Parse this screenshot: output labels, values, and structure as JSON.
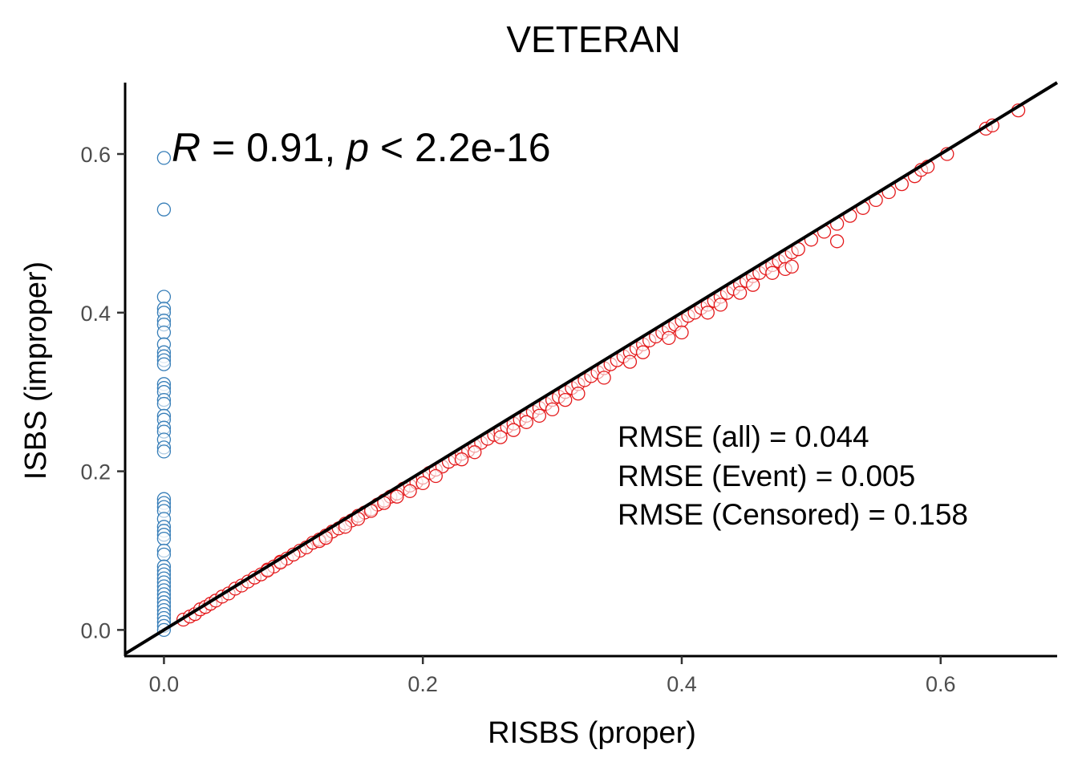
{
  "chart_data": {
    "type": "scatter",
    "title": "VETERAN",
    "xlabel": "RISBS (proper)",
    "ylabel": "ISBS (improper)",
    "xlim": [
      -0.03,
      0.69
    ],
    "ylim": [
      -0.033,
      0.69
    ],
    "x_ticks": [
      0.0,
      0.2,
      0.4,
      0.6
    ],
    "x_tick_labels": [
      "0.0",
      "0.2",
      "0.4",
      "0.6"
    ],
    "y_ticks": [
      0.0,
      0.2,
      0.4,
      0.6
    ],
    "y_tick_labels": [
      "0.0",
      "0.2",
      "0.4",
      "0.6"
    ],
    "grid": false,
    "reference_line": {
      "slope": 1,
      "intercept": 0,
      "color": "#000000"
    },
    "annotation": {
      "R_symbol": "R",
      "r_text": " = 0.91, ",
      "p_symbol": "p",
      "p_text": " < 2.2e-16"
    },
    "rmse_lines": [
      "RMSE (all) = 0.044",
      "RMSE (Event) = 0.005",
      "RMSE (Censored) = 0.158"
    ],
    "series": [
      {
        "color": "#e41a1c",
        "points": [
          [
            0.015,
            0.013
          ],
          [
            0.02,
            0.017
          ],
          [
            0.024,
            0.02
          ],
          [
            0.028,
            0.026
          ],
          [
            0.032,
            0.029
          ],
          [
            0.036,
            0.033
          ],
          [
            0.04,
            0.037
          ],
          [
            0.045,
            0.042
          ],
          [
            0.05,
            0.046
          ],
          [
            0.055,
            0.052
          ],
          [
            0.06,
            0.056
          ],
          [
            0.065,
            0.061
          ],
          [
            0.07,
            0.066
          ],
          [
            0.075,
            0.07
          ],
          [
            0.08,
            0.076
          ],
          [
            0.085,
            0.08
          ],
          [
            0.09,
            0.086
          ],
          [
            0.095,
            0.09
          ],
          [
            0.1,
            0.095
          ],
          [
            0.105,
            0.1
          ],
          [
            0.11,
            0.104
          ],
          [
            0.115,
            0.11
          ],
          [
            0.12,
            0.114
          ],
          [
            0.125,
            0.119
          ],
          [
            0.13,
            0.124
          ],
          [
            0.135,
            0.128
          ],
          [
            0.14,
            0.134
          ],
          [
            0.145,
            0.138
          ],
          [
            0.15,
            0.144
          ],
          [
            0.155,
            0.148
          ],
          [
            0.16,
            0.152
          ],
          [
            0.165,
            0.158
          ],
          [
            0.17,
            0.163
          ],
          [
            0.175,
            0.168
          ],
          [
            0.18,
            0.172
          ],
          [
            0.185,
            0.178
          ],
          [
            0.19,
            0.182
          ],
          [
            0.195,
            0.186
          ],
          [
            0.2,
            0.192
          ],
          [
            0.205,
            0.198
          ],
          [
            0.21,
            0.202
          ],
          [
            0.215,
            0.206
          ],
          [
            0.22,
            0.212
          ],
          [
            0.225,
            0.216
          ],
          [
            0.23,
            0.222
          ],
          [
            0.235,
            0.226
          ],
          [
            0.24,
            0.232
          ],
          [
            0.245,
            0.236
          ],
          [
            0.25,
            0.241
          ],
          [
            0.255,
            0.246
          ],
          [
            0.26,
            0.25
          ],
          [
            0.265,
            0.256
          ],
          [
            0.27,
            0.26
          ],
          [
            0.275,
            0.265
          ],
          [
            0.28,
            0.27
          ],
          [
            0.285,
            0.275
          ],
          [
            0.29,
            0.28
          ],
          [
            0.295,
            0.285
          ],
          [
            0.3,
            0.29
          ],
          [
            0.305,
            0.294
          ],
          [
            0.31,
            0.3
          ],
          [
            0.315,
            0.305
          ],
          [
            0.32,
            0.31
          ],
          [
            0.325,
            0.315
          ],
          [
            0.33,
            0.32
          ],
          [
            0.335,
            0.325
          ],
          [
            0.34,
            0.33
          ],
          [
            0.345,
            0.335
          ],
          [
            0.35,
            0.34
          ],
          [
            0.355,
            0.345
          ],
          [
            0.36,
            0.35
          ],
          [
            0.365,
            0.355
          ],
          [
            0.37,
            0.36
          ],
          [
            0.375,
            0.365
          ],
          [
            0.38,
            0.37
          ],
          [
            0.385,
            0.375
          ],
          [
            0.39,
            0.38
          ],
          [
            0.395,
            0.385
          ],
          [
            0.4,
            0.39
          ],
          [
            0.405,
            0.396
          ],
          [
            0.41,
            0.4
          ],
          [
            0.415,
            0.406
          ],
          [
            0.42,
            0.41
          ],
          [
            0.425,
            0.415
          ],
          [
            0.43,
            0.42
          ],
          [
            0.435,
            0.425
          ],
          [
            0.44,
            0.43
          ],
          [
            0.445,
            0.436
          ],
          [
            0.45,
            0.44
          ],
          [
            0.455,
            0.446
          ],
          [
            0.46,
            0.45
          ],
          [
            0.465,
            0.456
          ],
          [
            0.47,
            0.46
          ],
          [
            0.475,
            0.465
          ],
          [
            0.48,
            0.47
          ],
          [
            0.485,
            0.476
          ],
          [
            0.49,
            0.48
          ],
          [
            0.5,
            0.492
          ],
          [
            0.51,
            0.502
          ],
          [
            0.52,
            0.512
          ],
          [
            0.53,
            0.522
          ],
          [
            0.54,
            0.532
          ],
          [
            0.55,
            0.542
          ],
          [
            0.56,
            0.552
          ],
          [
            0.57,
            0.562
          ],
          [
            0.58,
            0.572
          ],
          [
            0.585,
            0.58
          ],
          [
            0.59,
            0.584
          ],
          [
            0.605,
            0.6
          ],
          [
            0.635,
            0.632
          ],
          [
            0.64,
            0.636
          ],
          [
            0.66,
            0.655
          ],
          [
            0.19,
            0.175
          ],
          [
            0.2,
            0.185
          ],
          [
            0.21,
            0.194
          ],
          [
            0.23,
            0.215
          ],
          [
            0.24,
            0.224
          ],
          [
            0.26,
            0.243
          ],
          [
            0.27,
            0.252
          ],
          [
            0.28,
            0.262
          ],
          [
            0.29,
            0.27
          ],
          [
            0.3,
            0.278
          ],
          [
            0.31,
            0.29
          ],
          [
            0.32,
            0.298
          ],
          [
            0.34,
            0.318
          ],
          [
            0.36,
            0.338
          ],
          [
            0.37,
            0.35
          ],
          [
            0.39,
            0.368
          ],
          [
            0.4,
            0.375
          ],
          [
            0.42,
            0.4
          ],
          [
            0.43,
            0.41
          ],
          [
            0.445,
            0.425
          ],
          [
            0.455,
            0.435
          ],
          [
            0.47,
            0.45
          ],
          [
            0.48,
            0.455
          ],
          [
            0.485,
            0.458
          ],
          [
            0.52,
            0.49
          ],
          [
            0.14,
            0.13
          ],
          [
            0.15,
            0.14
          ],
          [
            0.16,
            0.15
          ],
          [
            0.17,
            0.16
          ],
          [
            0.18,
            0.168
          ],
          [
            0.1,
            0.095
          ],
          [
            0.12,
            0.112
          ],
          [
            0.125,
            0.116
          ],
          [
            0.09,
            0.085
          ],
          [
            0.08,
            0.075
          ]
        ]
      },
      {
        "color": "#377eb8",
        "points": [
          [
            0,
            0.595
          ],
          [
            0,
            0.53
          ],
          [
            0,
            0.42
          ],
          [
            0,
            0.405
          ],
          [
            0,
            0.4
          ],
          [
            0,
            0.39
          ],
          [
            0,
            0.385
          ],
          [
            0,
            0.375
          ],
          [
            0,
            0.36
          ],
          [
            0,
            0.35
          ],
          [
            0,
            0.345
          ],
          [
            0,
            0.34
          ],
          [
            0,
            0.335
          ],
          [
            0,
            0.31
          ],
          [
            0,
            0.305
          ],
          [
            0,
            0.3
          ],
          [
            0,
            0.29
          ],
          [
            0,
            0.285
          ],
          [
            0,
            0.27
          ],
          [
            0,
            0.265
          ],
          [
            0,
            0.255
          ],
          [
            0,
            0.25
          ],
          [
            0,
            0.24
          ],
          [
            0,
            0.23
          ],
          [
            0,
            0.225
          ],
          [
            0,
            0.165
          ],
          [
            0,
            0.16
          ],
          [
            0,
            0.155
          ],
          [
            0,
            0.15
          ],
          [
            0,
            0.14
          ],
          [
            0,
            0.13
          ],
          [
            0,
            0.125
          ],
          [
            0,
            0.12
          ],
          [
            0,
            0.115
          ],
          [
            0,
            0.1
          ],
          [
            0,
            0.095
          ],
          [
            0,
            0.08
          ],
          [
            0,
            0.075
          ],
          [
            0,
            0.07
          ],
          [
            0,
            0.065
          ],
          [
            0,
            0.06
          ],
          [
            0,
            0.055
          ],
          [
            0,
            0.05
          ],
          [
            0,
            0.045
          ],
          [
            0,
            0.04
          ],
          [
            0,
            0.035
          ],
          [
            0,
            0.03
          ],
          [
            0,
            0.025
          ],
          [
            0,
            0.02
          ],
          [
            0,
            0.015
          ],
          [
            0,
            0.01
          ],
          [
            0,
            0.005
          ],
          [
            0,
            0.0
          ]
        ]
      }
    ]
  }
}
